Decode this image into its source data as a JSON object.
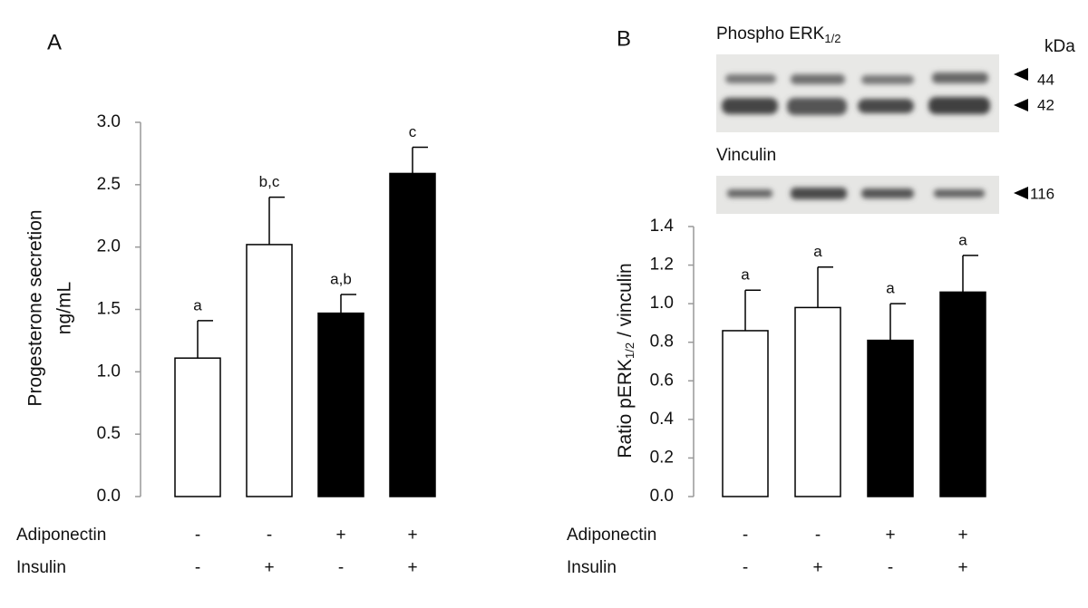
{
  "chart_data": [
    {
      "type": "bar",
      "panel": "A",
      "ylabel": [
        "Progesterone secretion",
        "ng/mL"
      ],
      "categories": [
        null,
        null,
        null,
        null
      ],
      "values": [
        1.11,
        2.02,
        1.47,
        2.59
      ],
      "errors": [
        0.3,
        0.38,
        0.15,
        0.21
      ],
      "annotations": [
        "a",
        "b,c",
        "a,b",
        "c"
      ],
      "colors": [
        "#ffffff",
        "#ffffff",
        "#000000",
        "#000000"
      ],
      "ylim": [
        0,
        3.0
      ],
      "yticks": [
        {
          "value": 0,
          "label": "0.0"
        },
        {
          "value": 0.5,
          "label": "0.5"
        },
        {
          "value": 1.0,
          "label": "1.0"
        },
        {
          "value": 1.5,
          "label": "1.5"
        },
        {
          "value": 2.0,
          "label": "2.0"
        },
        {
          "value": 2.5,
          "label": "2.5"
        },
        {
          "value": 3.0,
          "label": "3.0"
        }
      ],
      "conditions": [
        {
          "name": "Adiponectin",
          "values": [
            "-",
            "-",
            "+",
            "+"
          ]
        },
        {
          "name": "Insulin",
          "values": [
            "-",
            "+",
            "-",
            "+"
          ]
        }
      ]
    },
    {
      "type": "bar",
      "panel": "B",
      "ylabel": {
        "text": "Ratio pERK",
        "subscript": "1/2",
        "suffix": " / vinculin"
      },
      "categories": [
        null,
        null,
        null,
        null
      ],
      "values": [
        0.86,
        0.98,
        0.81,
        1.06
      ],
      "errors": [
        0.21,
        0.21,
        0.19,
        0.19
      ],
      "annotations": [
        "a",
        "a",
        "a",
        "a"
      ],
      "colors": [
        "#ffffff",
        "#ffffff",
        "#000000",
        "#000000"
      ],
      "ylim": [
        0,
        1.4
      ],
      "yticks": [
        {
          "value": 0,
          "label": "0.0"
        },
        {
          "value": 0.2,
          "label": "0.2"
        },
        {
          "value": 0.4,
          "label": "0.4"
        },
        {
          "value": 0.6,
          "label": "0.6"
        },
        {
          "value": 0.8,
          "label": "0.8"
        },
        {
          "value": 1.0,
          "label": "1.0"
        },
        {
          "value": 1.2,
          "label": "1.2"
        },
        {
          "value": 1.4,
          "label": "1.4"
        }
      ],
      "conditions": [
        {
          "name": "Adiponectin",
          "values": [
            "-",
            "-",
            "+",
            "+"
          ]
        },
        {
          "name": "Insulin",
          "values": [
            "-",
            "+",
            "-",
            "+"
          ]
        }
      ],
      "blots": [
        {
          "name": "Phospho ERK",
          "subscript": "1/2",
          "markers": [
            "44",
            "42"
          ]
        },
        {
          "name": "Vinculin",
          "markers": [
            "116"
          ]
        }
      ],
      "unit": "kDa"
    }
  ]
}
